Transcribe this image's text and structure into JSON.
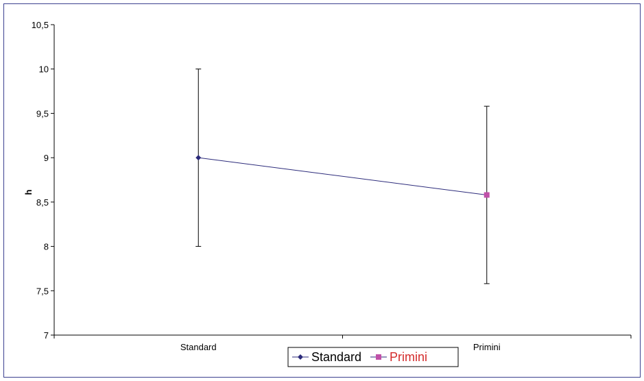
{
  "chart_data": {
    "type": "line",
    "title": "",
    "xlabel": "",
    "ylabel": "h",
    "categories": [
      "Standard",
      "Primini"
    ],
    "ylim": [
      7,
      10.5
    ],
    "ytick_step": 0.5,
    "ytick_labels": [
      "7",
      "7,5",
      "8",
      "8,5",
      "9",
      "9,5",
      "10",
      "10,5"
    ],
    "grid": false,
    "legend_position": "bottom-center",
    "series": [
      {
        "values": [
          9.0,
          8.58
        ],
        "error_low": [
          8.0,
          7.58
        ],
        "error_high": [
          10.0,
          9.58
        ],
        "point_markers": [
          "diamond",
          "square"
        ],
        "point_colors": [
          "#2b2a7a",
          "#c050a8"
        ],
        "line_color": "#2b2a7a"
      }
    ],
    "legend": [
      {
        "name": "Standard",
        "marker": "diamond",
        "color": "#2b2a7a",
        "text_color": "#000000"
      },
      {
        "name": "Primini",
        "marker": "square",
        "color": "#c050a8",
        "text_color": "#d42a2a"
      }
    ]
  },
  "colors": {
    "frame_border": "#3a3f8f",
    "axis": "#000000"
  }
}
